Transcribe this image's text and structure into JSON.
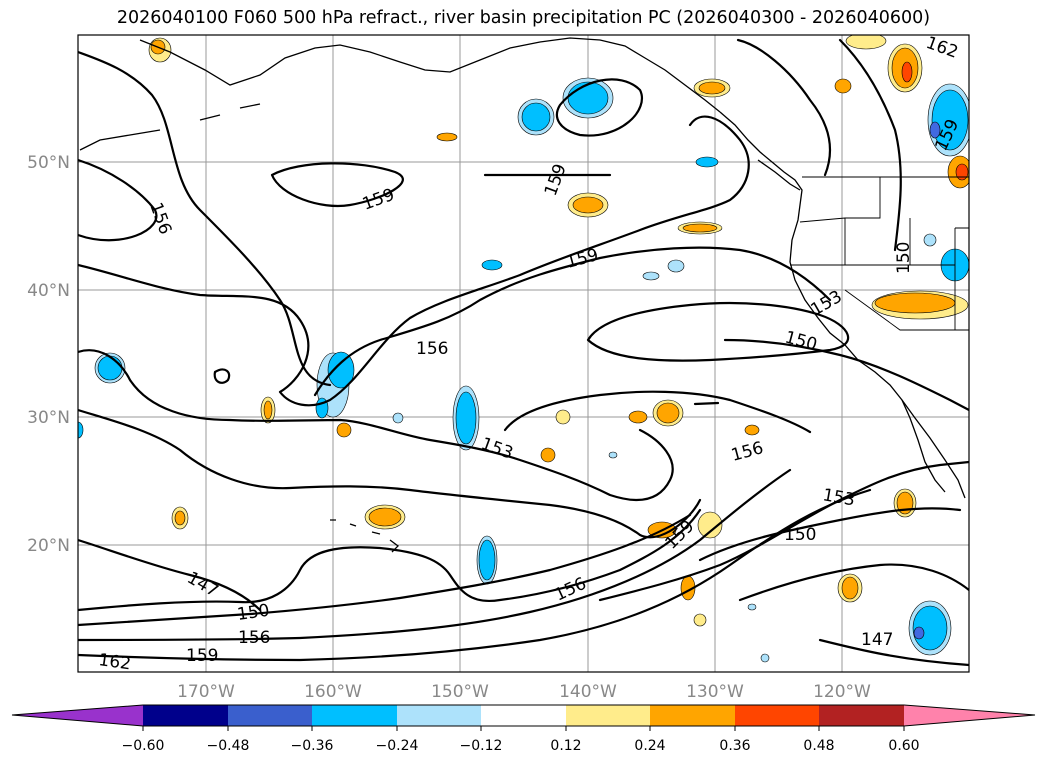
{
  "title": "2026040100 F060 500 hPa refract., river basin precipitation PC (2026040300 - 2026040600)",
  "lat_labels": [
    "50°N",
    "40°N",
    "30°N",
    "20°N"
  ],
  "lon_labels": [
    "170°W",
    "160°W",
    "150°W",
    "140°W",
    "130°W",
    "120°W"
  ],
  "contour_labels": [
    "156",
    "159",
    "159",
    "159",
    "156",
    "153",
    "156",
    "153",
    "150",
    "159",
    "150",
    "156",
    "147",
    "150",
    "156",
    "159",
    "162",
    "159",
    "162",
    "153",
    "150",
    "147"
  ],
  "colorbar": {
    "ticks": [
      "−0.60",
      "−0.48",
      "−0.36",
      "−0.24",
      "−0.12",
      "0.12",
      "0.24",
      "0.36",
      "0.48",
      "0.60"
    ],
    "colors": [
      "#9932CC",
      "#00008B",
      "#3A5FCD",
      "#00BFFF",
      "#ADE2FB",
      "#FFFFFF",
      "#FFEC8B",
      "#FFA500",
      "#FF4500",
      "#B22222",
      "#FF82AB"
    ]
  },
  "colors": {
    "strong_negative": "#4169E1",
    "negative": "#00BFFF",
    "weak_negative": "#ADE2FB",
    "weak_positive": "#FFEC8B",
    "positive": "#FFA500",
    "strong_positive": "#FF4500"
  }
}
